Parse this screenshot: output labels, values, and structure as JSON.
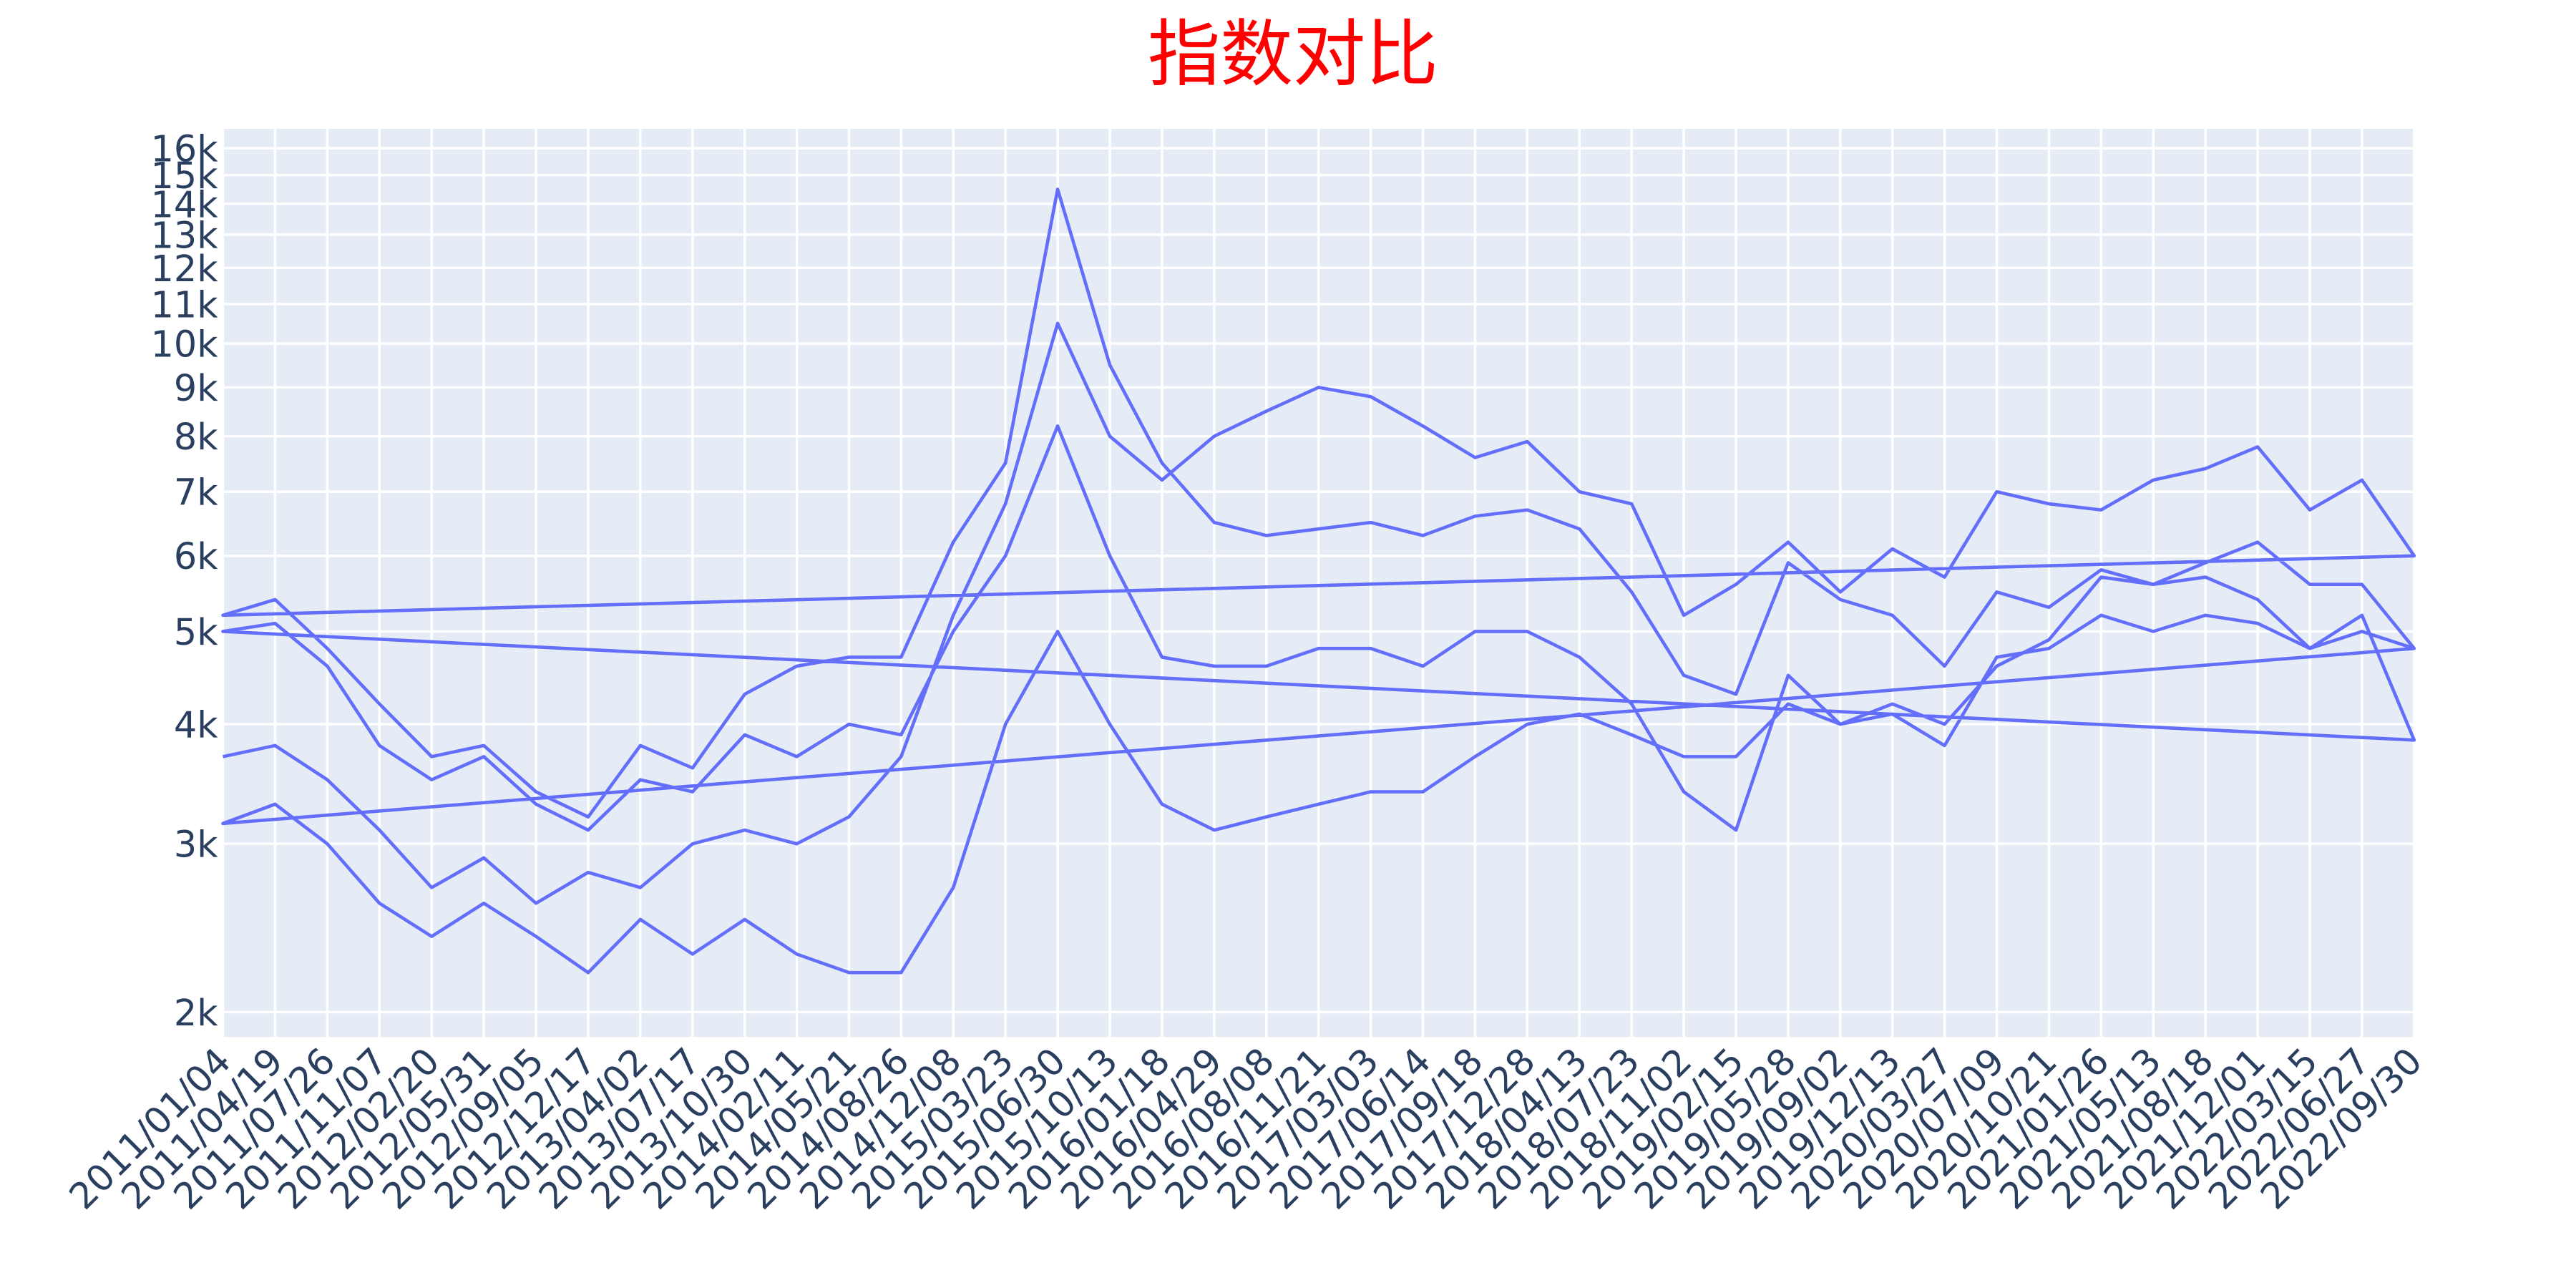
{
  "chart_data": {
    "type": "line",
    "title": "指数对比",
    "title_color": "#ff0000",
    "x": [
      "2011/01/04",
      "2011/04/19",
      "2011/07/26",
      "2011/11/07",
      "2012/02/20",
      "2012/05/31",
      "2012/09/05",
      "2012/12/17",
      "2013/04/02",
      "2013/07/17",
      "2013/10/30",
      "2014/02/11",
      "2014/05/21",
      "2014/08/26",
      "2014/12/08",
      "2015/03/23",
      "2015/06/30",
      "2015/10/13",
      "2016/01/18",
      "2016/04/29",
      "2016/08/08",
      "2016/11/21",
      "2017/03/03",
      "2017/06/14",
      "2017/09/18",
      "2017/12/28",
      "2018/04/13",
      "2018/07/23",
      "2018/11/02",
      "2019/02/15",
      "2019/05/28",
      "2019/09/02",
      "2019/12/13",
      "2020/03/27",
      "2020/07/09",
      "2020/10/21",
      "2021/01/26",
      "2021/05/13",
      "2021/08/18",
      "2021/12/01",
      "2022/03/15",
      "2022/06/27",
      "2022/09/30"
    ],
    "series": [
      {
        "color": "#636efa",
        "values": [
          3700,
          3800,
          3500,
          3100,
          2700,
          2900,
          2600,
          2800,
          2700,
          3000,
          3100,
          3000,
          3200,
          3700,
          5200,
          6800,
          10500,
          8000,
          7200,
          8000,
          8500,
          9000,
          8800,
          8200,
          7600,
          7900,
          7000,
          6800,
          5200,
          5600,
          6200,
          5500,
          6100,
          5700,
          7000,
          6800,
          6700,
          7200,
          7400,
          7800,
          6700,
          7200,
          6000
        ]
      },
      {
        "color": "#636efa",
        "values": [
          5200,
          5400,
          4800,
          4200,
          3700,
          3800,
          3400,
          3200,
          3800,
          3600,
          4300,
          4600,
          4700,
          4700,
          6200,
          7500,
          14500,
          9500,
          7500,
          6500,
          6300,
          6400,
          6500,
          6300,
          6600,
          6700,
          6400,
          5500,
          4500,
          4300,
          5900,
          5400,
          5200,
          4600,
          5500,
          5300,
          5800,
          5600,
          5700,
          5400,
          4800,
          5200,
          3850
        ]
      },
      {
        "color": "#636efa",
        "values": [
          5000,
          5100,
          4600,
          3800,
          3500,
          3700,
          3300,
          3100,
          3500,
          3400,
          3900,
          3700,
          4000,
          3900,
          5000,
          6000,
          8200,
          6000,
          4700,
          4600,
          4600,
          4800,
          4800,
          4600,
          5000,
          5000,
          4700,
          4200,
          3400,
          3100,
          4500,
          4000,
          4100,
          3800,
          4700,
          4800,
          5200,
          5000,
          5200,
          5100,
          4800,
          5000,
          4800
        ]
      },
      {
        "color": "#636efa",
        "values": [
          3150,
          3300,
          3000,
          2600,
          2400,
          2600,
          2400,
          2200,
          2500,
          2300,
          2500,
          2300,
          2200,
          2200,
          2700,
          4000,
          5000,
          4000,
          3300,
          3100,
          3200,
          3300,
          3400,
          3400,
          3700,
          4000,
          4100,
          3900,
          3700,
          3700,
          4200,
          4000,
          4200,
          4000,
          4600,
          4900,
          5700,
          5600,
          5900,
          6200,
          5600,
          5600,
          4800
        ]
      }
    ],
    "log_y": true,
    "grid": true,
    "ylim": [
      1884,
      16770
    ],
    "yticks": [
      {
        "value": 2000,
        "label": "2k"
      },
      {
        "value": 3000,
        "label": "3k"
      },
      {
        "value": 4000,
        "label": "4k"
      },
      {
        "value": 5000,
        "label": "5k"
      },
      {
        "value": 6000,
        "label": "6k"
      },
      {
        "value": 7000,
        "label": "7k"
      },
      {
        "value": 8000,
        "label": "8k"
      },
      {
        "value": 9000,
        "label": "9k"
      },
      {
        "value": 10000,
        "label": "10k"
      },
      {
        "value": 11000,
        "label": "11k"
      },
      {
        "value": 12000,
        "label": "12k"
      },
      {
        "value": 13000,
        "label": "13k"
      },
      {
        "value": 14000,
        "label": "14k"
      },
      {
        "value": 15000,
        "label": "15k"
      },
      {
        "value": 16000,
        "label": "16k"
      }
    ]
  }
}
